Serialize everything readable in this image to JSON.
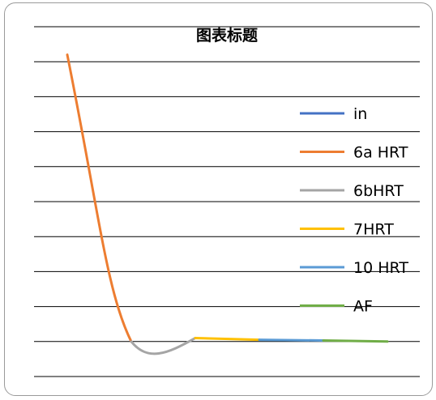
{
  "chart_data": {
    "type": "line",
    "title": "图表标题",
    "xlabel": "",
    "ylabel": "",
    "y_ticks_shown": false,
    "ylim": [
      -1,
      9
    ],
    "grid": true,
    "legend_position": "right",
    "series": [
      {
        "name": "in",
        "color": "#4472C4",
        "points": []
      },
      {
        "name": "6a HRT",
        "color": "#ED7D31",
        "points": [
          [
            0,
            8.2
          ],
          [
            1,
            0.0
          ]
        ]
      },
      {
        "name": "6bHRT",
        "color": "#A5A5A5",
        "points": [
          [
            1,
            0.0
          ],
          [
            2,
            0.1
          ]
        ]
      },
      {
        "name": "7HRT",
        "color": "#FFC000",
        "points": [
          [
            2,
            0.1
          ],
          [
            3,
            0.05
          ]
        ]
      },
      {
        "name": "10 HRT",
        "color": "#5B9BD5",
        "points": [
          [
            3,
            0.05
          ],
          [
            4,
            0.03
          ]
        ]
      },
      {
        "name": "AF",
        "color": "#70AD47",
        "points": [
          [
            4,
            0.03
          ],
          [
            5,
            0.0
          ]
        ]
      }
    ]
  }
}
